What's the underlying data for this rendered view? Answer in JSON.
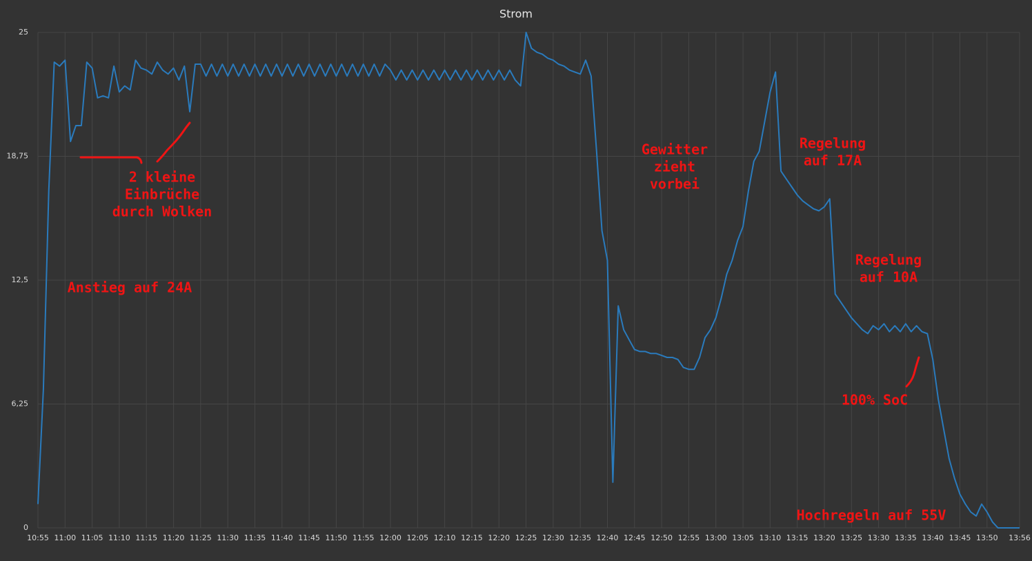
{
  "chart_data": {
    "type": "line",
    "title": "Strom",
    "color": "#2a7bbd",
    "grid": true,
    "xlim": [
      "10:55",
      "13:56"
    ],
    "xticks": [
      "10:55",
      "11:00",
      "11:05",
      "11:10",
      "11:15",
      "11:20",
      "11:25",
      "11:30",
      "11:35",
      "11:40",
      "11:45",
      "11:50",
      "11:55",
      "12:00",
      "12:05",
      "12:10",
      "12:15",
      "12:20",
      "12:25",
      "12:30",
      "12:35",
      "12:40",
      "12:45",
      "12:50",
      "12:55",
      "13:00",
      "13:05",
      "13:10",
      "13:15",
      "13:20",
      "13:25",
      "13:30",
      "13:35",
      "13:40",
      "13:45",
      "13:50",
      "13:56"
    ],
    "ylim": [
      0,
      25
    ],
    "yticks": [
      0,
      {
        "value": 6.25,
        "label": "6,25"
      },
      {
        "value": 12.5,
        "label": "12,5"
      },
      {
        "value": 18.75,
        "label": "18,75"
      },
      25
    ],
    "x": [
      "10:55",
      "10:56",
      "10:57",
      "10:58",
      "10:59",
      "11:00",
      "11:01",
      "11:02",
      "11:03",
      "11:04",
      "11:05",
      "11:06",
      "11:07",
      "11:08",
      "11:09",
      "11:10",
      "11:11",
      "11:12",
      "11:13",
      "11:14",
      "11:15",
      "11:16",
      "11:17",
      "11:18",
      "11:19",
      "11:20",
      "11:21",
      "11:22",
      "11:23",
      "11:24",
      "11:25",
      "11:26",
      "11:27",
      "11:28",
      "11:29",
      "11:30",
      "11:31",
      "11:32",
      "11:33",
      "11:34",
      "11:35",
      "11:36",
      "11:37",
      "11:38",
      "11:39",
      "11:40",
      "11:41",
      "11:42",
      "11:43",
      "11:44",
      "11:45",
      "11:46",
      "11:47",
      "11:48",
      "11:49",
      "11:50",
      "11:51",
      "11:52",
      "11:53",
      "11:54",
      "11:55",
      "11:56",
      "11:57",
      "11:58",
      "11:59",
      "12:00",
      "12:01",
      "12:02",
      "12:03",
      "12:04",
      "12:05",
      "12:06",
      "12:07",
      "12:08",
      "12:09",
      "12:10",
      "12:11",
      "12:12",
      "12:13",
      "12:14",
      "12:15",
      "12:16",
      "12:17",
      "12:18",
      "12:19",
      "12:20",
      "12:21",
      "12:22",
      "12:23",
      "12:24",
      "12:25",
      "12:26",
      "12:27",
      "12:28",
      "12:29",
      "12:30",
      "12:31",
      "12:32",
      "12:33",
      "12:34",
      "12:35",
      "12:36",
      "12:37",
      "12:38",
      "12:39",
      "12:40",
      "12:41",
      "12:42",
      "12:43",
      "12:44",
      "12:45",
      "12:46",
      "12:47",
      "12:48",
      "12:49",
      "12:50",
      "12:51",
      "12:52",
      "12:53",
      "12:54",
      "12:55",
      "12:56",
      "12:57",
      "12:58",
      "12:59",
      "13:00",
      "13:01",
      "13:02",
      "13:03",
      "13:04",
      "13:05",
      "13:06",
      "13:07",
      "13:08",
      "13:09",
      "13:10",
      "13:11",
      "13:12",
      "13:13",
      "13:14",
      "13:15",
      "13:16",
      "13:17",
      "13:18",
      "13:19",
      "13:20",
      "13:21",
      "13:22",
      "13:23",
      "13:24",
      "13:25",
      "13:26",
      "13:27",
      "13:28",
      "13:29",
      "13:30",
      "13:31",
      "13:32",
      "13:33",
      "13:34",
      "13:35",
      "13:36",
      "13:37",
      "13:38",
      "13:39",
      "13:40",
      "13:41",
      "13:42",
      "13:43",
      "13:44",
      "13:45",
      "13:46",
      "13:47",
      "13:48",
      "13:49",
      "13:50",
      "13:51",
      "13:52",
      "13:53",
      "13:54",
      "13:55",
      "13:56"
    ],
    "values": [
      1.2,
      7,
      17,
      23.5,
      23.3,
      23.6,
      19.5,
      20.3,
      20.3,
      23.5,
      23.2,
      21.7,
      21.8,
      21.7,
      23.3,
      22,
      22.3,
      22.1,
      23.6,
      23.2,
      23.1,
      22.9,
      23.5,
      23.1,
      22.9,
      23.2,
      22.6,
      23.3,
      21,
      23.4,
      23.4,
      22.8,
      23.4,
      22.8,
      23.4,
      22.8,
      23.4,
      22.8,
      23.4,
      22.8,
      23.4,
      22.8,
      23.4,
      22.8,
      23.4,
      22.8,
      23.4,
      22.8,
      23.4,
      22.8,
      23.4,
      22.8,
      23.4,
      22.8,
      23.4,
      22.8,
      23.4,
      22.8,
      23.4,
      22.8,
      23.4,
      22.8,
      23.4,
      22.8,
      23.4,
      23.1,
      22.6,
      23.1,
      22.6,
      23.1,
      22.6,
      23.1,
      22.6,
      23.1,
      22.6,
      23.1,
      22.6,
      23.1,
      22.6,
      23.1,
      22.6,
      23.1,
      22.6,
      23.1,
      22.6,
      23.1,
      22.6,
      23.1,
      22.6,
      22.3,
      25,
      24.2,
      24,
      23.9,
      23.7,
      23.6,
      23.4,
      23.3,
      23.1,
      23,
      22.9,
      23.6,
      22.8,
      19,
      15,
      13.5,
      2.3,
      11.2,
      10,
      9.5,
      9,
      8.9,
      8.9,
      8.8,
      8.8,
      8.7,
      8.6,
      8.6,
      8.5,
      8.1,
      8,
      8,
      8.6,
      9.6,
      10,
      10.6,
      11.6,
      12.8,
      13.5,
      14.5,
      15.2,
      17,
      18.5,
      19,
      20.5,
      22,
      23,
      18,
      17.6,
      17.2,
      16.8,
      16.5,
      16.3,
      16.1,
      16,
      16.2,
      16.6,
      11.8,
      11.4,
      11,
      10.6,
      10.3,
      10,
      9.8,
      10.2,
      10,
      10.3,
      9.9,
      10.2,
      9.9,
      10.3,
      9.9,
      10.2,
      9.9,
      9.8,
      8.5,
      6.5,
      5,
      3.5,
      2.5,
      1.7,
      1.2,
      0.8,
      0.6,
      1.2,
      0.8,
      0.3,
      0,
      0,
      0,
      0,
      0
    ],
    "annotations": [
      [
        "Anstieg auf 24A"
      ],
      [
        "2 kleine",
        "Einbrüche",
        "durch Wolken"
      ],
      [
        "Gewitter",
        "zieht",
        "vorbei"
      ],
      [
        "Regelung",
        "auf 17A"
      ],
      [
        "Regelung",
        "auf 10A"
      ],
      [
        "100% SoC"
      ],
      [
        "Hochregeln auf 55V"
      ]
    ]
  }
}
